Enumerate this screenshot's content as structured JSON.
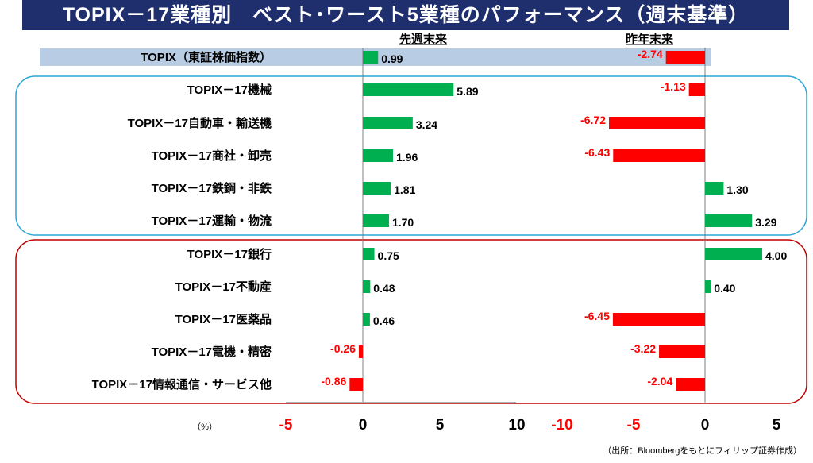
{
  "title": "TOPIX－17業種別　ベスト･ワースト5業種のパフォーマンス（週末基準）",
  "unit_label": "（%）",
  "source_note": "（出所：Bloombergをもとにフィリップ証券作成）",
  "colors": {
    "title_bg": "#1f2f6e",
    "positive": "#00b050",
    "negative": "#ff0000",
    "best_frame": "#2aa7d6",
    "worst_frame": "#c00000",
    "topix_bg": "#b8cce4"
  },
  "chart_data": [
    {
      "type": "bar",
      "orientation": "horizontal",
      "title": "先週末来",
      "categories": [
        "TOPIX（東証株価指数）",
        "TOPIX－17機械",
        "TOPIX－17自動車・輸送機",
        "TOPIX－17商社・卸売",
        "TOPIX－17鉄鋼・非鉄",
        "TOPIX－17運輸・物流",
        "TOPIX－17銀行",
        "TOPIX－17不動産",
        "TOPIX－17医薬品",
        "TOPIX－17電機・精密",
        "TOPIX－17情報通信・サービス他"
      ],
      "values": [
        0.99,
        5.89,
        3.24,
        1.96,
        1.81,
        1.7,
        0.75,
        0.48,
        0.46,
        -0.26,
        -0.86
      ],
      "data_labels": [
        "0.99",
        "5.89",
        "3.24",
        "1.96",
        "1.81",
        "1.70",
        "0.75",
        "0.48",
        "0.46",
        "-0.26",
        "-0.86"
      ],
      "xlim": [
        -5,
        10
      ],
      "ticks": [
        "-5",
        "0",
        "5",
        "10"
      ]
    },
    {
      "type": "bar",
      "orientation": "horizontal",
      "title": "昨年末来",
      "categories": [
        "TOPIX（東証株価指数）",
        "TOPIX－17機械",
        "TOPIX－17自動車・輸送機",
        "TOPIX－17商社・卸売",
        "TOPIX－17鉄鋼・非鉄",
        "TOPIX－17運輸・物流",
        "TOPIX－17銀行",
        "TOPIX－17不動産",
        "TOPIX－17医薬品",
        "TOPIX－17電機・精密",
        "TOPIX－17情報通信・サービス他"
      ],
      "values": [
        -2.74,
        -1.13,
        -6.72,
        -6.43,
        1.3,
        3.29,
        4.0,
        0.4,
        -6.45,
        -3.22,
        -2.04
      ],
      "data_labels": [
        "-2.74",
        "-1.13",
        "-6.72",
        "-6.43",
        "1.30",
        "3.29",
        "4.00",
        "0.40",
        "-6.45",
        "-3.22",
        "-2.04"
      ],
      "xlim": [
        -10,
        5
      ],
      "ticks": [
        "-10",
        "-5",
        "0",
        "5"
      ]
    }
  ]
}
